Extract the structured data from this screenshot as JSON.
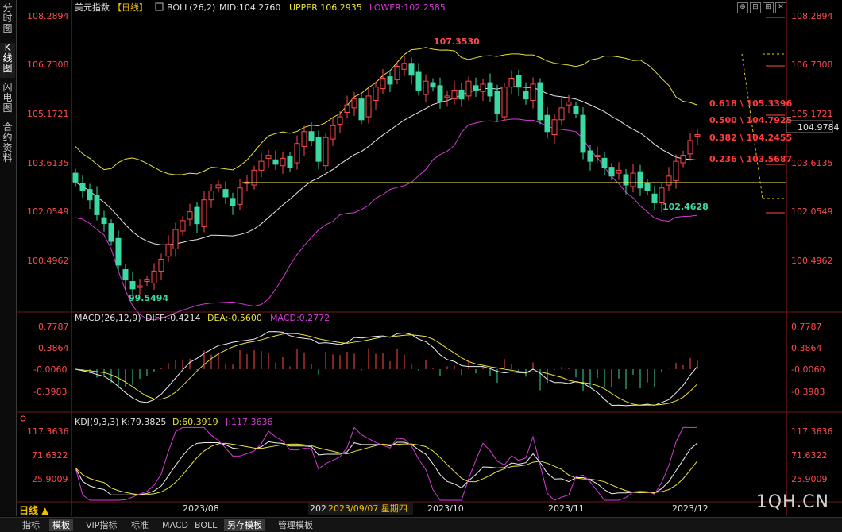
{
  "sidebar": {
    "tabs": [
      {
        "label": "分时图",
        "active": false
      },
      {
        "label": "K线图",
        "active": true
      },
      {
        "label": "闪电图",
        "active": false
      },
      {
        "label": "合约资料",
        "active": false
      }
    ]
  },
  "main_header": {
    "symbol": "美元指数",
    "period": "【日线】",
    "indicator": "BOLL(26,2)",
    "mid": "MID:104.2760",
    "upper": "UPPER:106.2935",
    "lower": "LOWER:102.2585"
  },
  "main_axis": {
    "ticks_left": [
      "108.2894",
      "106.7308",
      "105.1721",
      "103.6135",
      "102.0549",
      "100.4962"
    ],
    "ticks_right": [
      "108.2894",
      "106.7308",
      "105.1721",
      "103.6135",
      "102.0549",
      "100.4962"
    ],
    "current_price": "104.9784"
  },
  "price_labels": {
    "high": "107.3530",
    "low_aug": "99.5494",
    "low_nov": "102.4628"
  },
  "fib_levels": [
    {
      "label": "0.618 \\ 105.3396"
    },
    {
      "label": "0.500 \\ 104.7925"
    },
    {
      "label": "0.382 \\ 104.2455"
    },
    {
      "label": "0.236 \\ 103.5687"
    }
  ],
  "macd_panel": {
    "title": "MACD(26,12,9)",
    "diff": "DIFF:-0.4214",
    "dea": "DEA:-0.5600",
    "macd": "MACD:0.2772",
    "ticks": [
      "0.7787",
      "0.3864",
      "-0.0060",
      "-0.3983"
    ]
  },
  "kdj_panel": {
    "title": "KDJ(9,3,3)",
    "k": "K:79.3825",
    "d": "D:60.3919",
    "j": "J:117.3636",
    "ticks": [
      "117.3636",
      "71.6322",
      "25.9009"
    ]
  },
  "x_axis": {
    "labels": [
      "2023/08",
      "202",
      "2023/09/07 星期四",
      "2023/10",
      "2023/11",
      "2023/12"
    ]
  },
  "period_label": "日线 ▲",
  "watermark": "1QH.CN",
  "bottom_tabs": [
    {
      "label": "指标",
      "active": false
    },
    {
      "label": "模板",
      "active": true
    },
    {
      "label": "VIP指标",
      "active": false
    },
    {
      "label": "标准",
      "active": false
    },
    {
      "label": "MACD",
      "active": false
    },
    {
      "label": "BOLL",
      "active": false
    },
    {
      "label": "另存模板",
      "active": true
    },
    {
      "label": "管理模板",
      "active": false
    }
  ],
  "window_buttons": [
    "⊕",
    "⊟",
    "⊞",
    "✕"
  ],
  "colors": {
    "up": "#ff4a4a",
    "down": "#3dd9a4",
    "mid": "#e8e8e8",
    "upper": "#e8e23a",
    "lower": "#d63ad6",
    "fib": "#ff3b3b",
    "axis_text": "#ff4a4a",
    "support": "#f4ef6a"
  },
  "chart_data": {
    "type": "candlestick",
    "series_closes_approx": [
      103.2,
      102.9,
      102.6,
      102.1,
      101.8,
      101.2,
      100.4,
      99.9,
      99.6,
      99.7,
      99.9,
      100.2,
      100.6,
      101.1,
      101.6,
      101.9,
      102.2,
      101.8,
      102.6,
      102.9,
      103.1,
      102.7,
      102.4,
      103.0,
      103.2,
      103.6,
      103.9,
      104.1,
      103.8,
      104.0,
      103.7,
      104.5,
      104.9,
      104.6,
      103.9,
      104.7,
      105.1,
      105.4,
      105.8,
      106.0,
      105.3,
      106.1,
      106.4,
      106.7,
      106.5,
      107.1,
      107.2,
      106.8,
      106.3,
      106.6,
      106.4,
      105.9,
      106.1,
      106.3,
      106.0,
      106.6,
      106.3,
      106.5,
      106.1,
      105.5,
      106.4,
      106.7,
      106.4,
      106.0,
      106.5,
      105.3,
      104.9,
      105.3,
      105.7,
      105.9,
      105.5,
      104.2,
      103.9,
      104.1,
      103.7,
      103.4,
      103.6,
      103.1,
      103.5,
      103.0,
      102.9,
      102.5,
      103.0,
      103.4,
      103.9,
      104.1,
      104.6,
      104.8
    ]
  }
}
